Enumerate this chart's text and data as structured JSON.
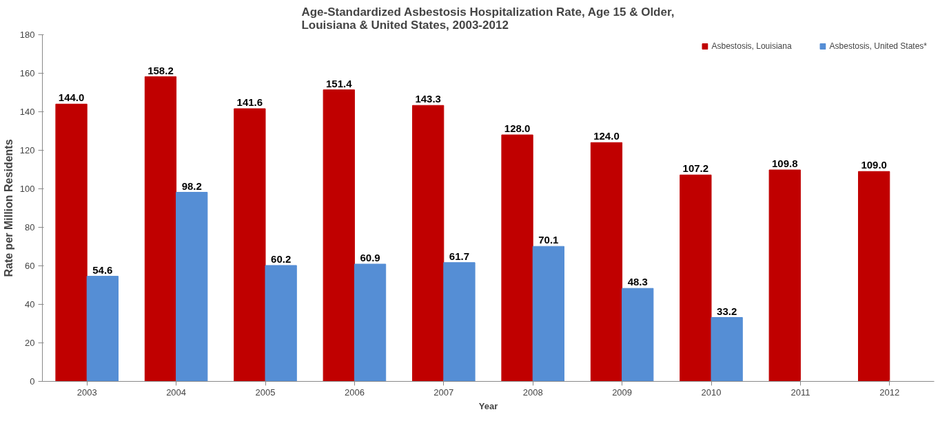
{
  "chart_data": {
    "type": "bar",
    "title": "Age-Standardized Asbestosis Hospitalization Rate, Age 15 & Older,\nLouisiana & United States, 2003-2012",
    "xlabel": "Year",
    "ylabel": "Rate per Million Residents",
    "categories": [
      "2003",
      "2004",
      "2005",
      "2006",
      "2007",
      "2008",
      "2009",
      "2010",
      "2011",
      "2012"
    ],
    "series": [
      {
        "name": "Asbestosis, Louisiana",
        "color": "#c00000",
        "values": [
          144.0,
          158.2,
          141.6,
          151.4,
          143.3,
          128.0,
          124.0,
          107.2,
          109.8,
          109.0
        ],
        "value_labels": [
          "144.0",
          "158.2",
          "141.6",
          "151.4",
          "143.3",
          "128.0",
          "124.0",
          "107.2",
          "109.8",
          "109.0"
        ]
      },
      {
        "name": "Asbestosis, United States*",
        "color": "#558ed5",
        "values": [
          54.6,
          98.2,
          60.2,
          60.9,
          61.7,
          70.1,
          48.3,
          33.2,
          null,
          null
        ],
        "value_labels": [
          "54.6",
          "98.2",
          "60.2",
          "60.9",
          "61.7",
          "70.1",
          "48.3",
          "33.2",
          null,
          null
        ]
      }
    ],
    "ylim": [
      0,
      180
    ],
    "yticks": [
      0,
      20,
      40,
      60,
      80,
      100,
      120,
      140,
      160,
      180
    ],
    "grid": false,
    "legend": "top right"
  }
}
